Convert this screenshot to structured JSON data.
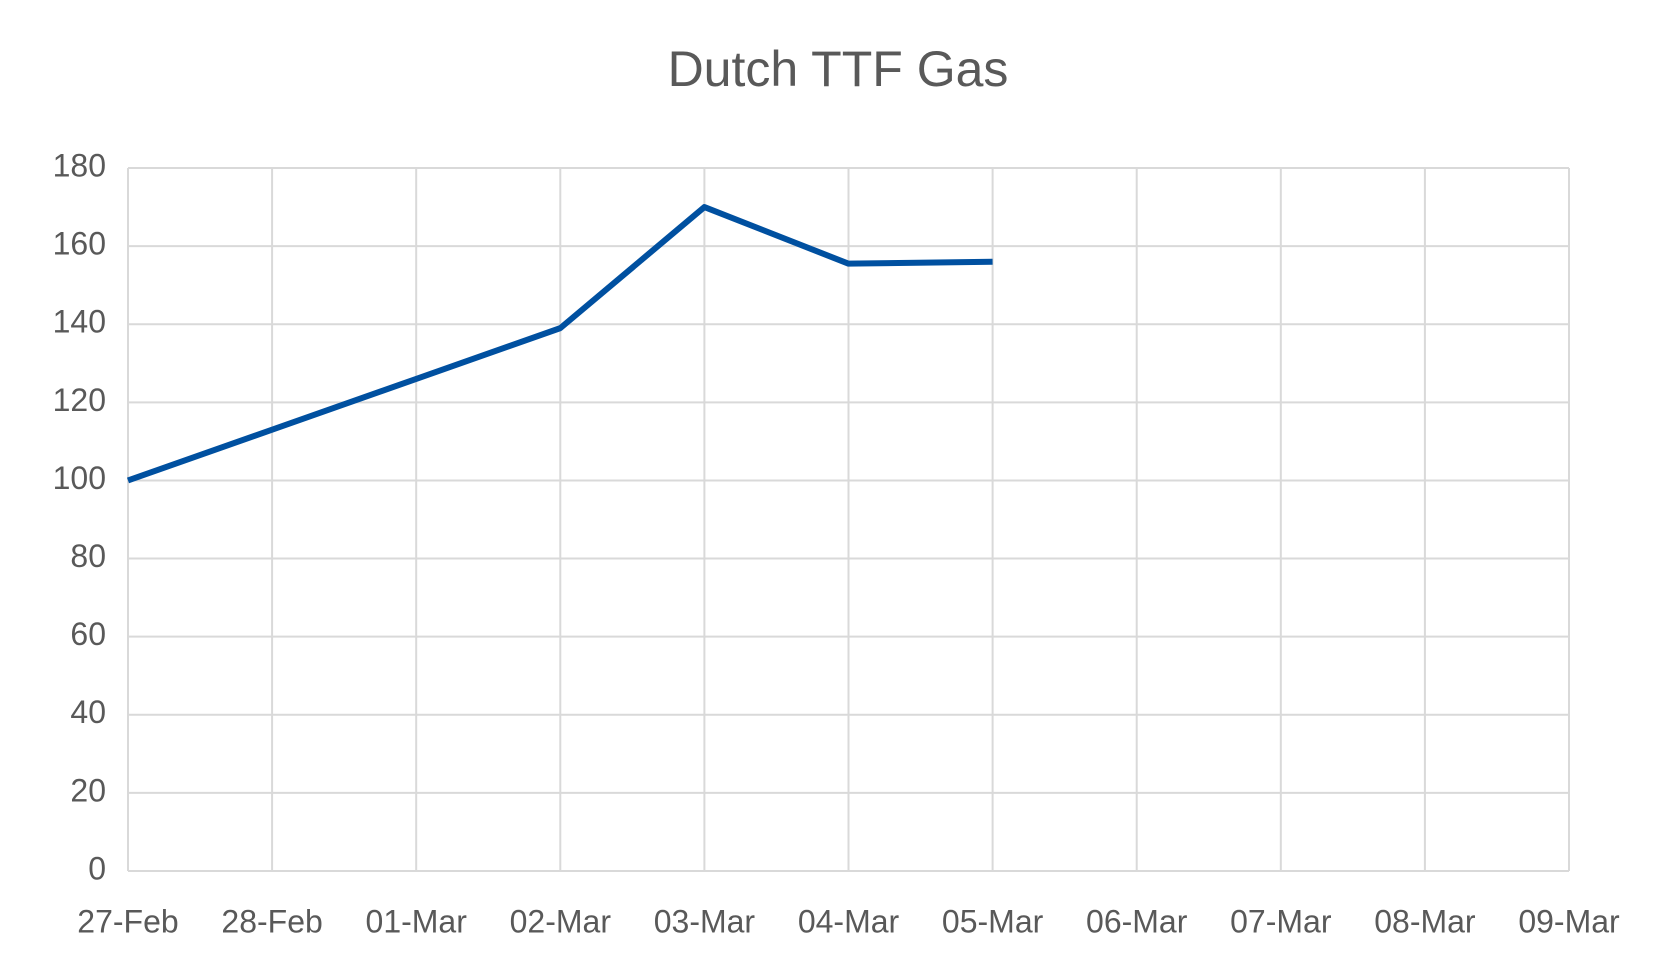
{
  "chart_data": {
    "type": "line",
    "title": "Dutch TTF Gas",
    "categories": [
      "27-Feb",
      "28-Feb",
      "01-Mar",
      "02-Mar",
      "03-Mar",
      "04-Mar",
      "05-Mar",
      "06-Mar",
      "07-Mar",
      "08-Mar",
      "09-Mar"
    ],
    "series": [
      {
        "color": "#0050a0",
        "values": [
          100,
          113,
          126,
          139,
          170,
          155.5,
          156,
          null,
          null,
          null,
          null
        ]
      }
    ],
    "ylim": [
      0,
      180
    ],
    "yticks": [
      0,
      20,
      40,
      60,
      80,
      100,
      120,
      140,
      160,
      180
    ],
    "grid": true
  }
}
